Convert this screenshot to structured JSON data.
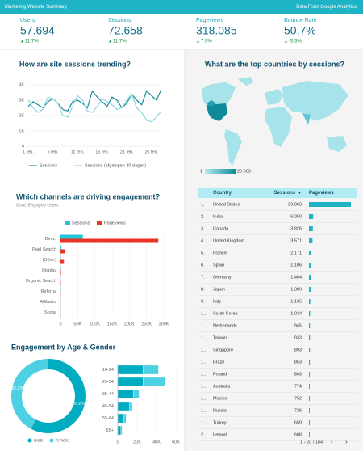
{
  "header": {
    "title": "Marketing Website Summary",
    "source": "Data From Google Analytics"
  },
  "kpis": [
    {
      "label": "Users",
      "value": "57.694",
      "delta": "11.7%"
    },
    {
      "label": "Sessions",
      "value": "72.658",
      "delta": "11.7%"
    },
    {
      "label": "Pageviews",
      "value": "318.085",
      "delta": "7.9%"
    },
    {
      "label": "Bounce Rate",
      "value": "50,7%",
      "delta": "-3.3%"
    }
  ],
  "map": {
    "title": "What are the top countries by sessions?",
    "legend_min": "1",
    "legend_max": "29.063"
  },
  "table": {
    "columns": [
      "Country",
      "Sessions",
      "Pageviews"
    ],
    "rows": [
      {
        "rank": "1.",
        "country": "United States",
        "sessions": "29.063",
        "pageviews": 130000
      },
      {
        "rank": "2.",
        "country": "India",
        "sessions": "6.050",
        "pageviews": 13000
      },
      {
        "rank": "3.",
        "country": "Canada",
        "sessions": "3.826",
        "pageviews": 12000
      },
      {
        "rank": "4.",
        "country": "United Kingdom",
        "sessions": "3.571",
        "pageviews": 11000
      },
      {
        "rank": "5.",
        "country": "France",
        "sessions": "2.171",
        "pageviews": 7000
      },
      {
        "rank": "6.",
        "country": "Spain",
        "sessions": "2.106",
        "pageviews": 7000
      },
      {
        "rank": "7.",
        "country": "Germany",
        "sessions": "1.464",
        "pageviews": 5000
      },
      {
        "rank": "8.",
        "country": "Japan",
        "sessions": "1.389",
        "pageviews": 5000
      },
      {
        "rank": "9.",
        "country": "Italy",
        "sessions": "1.135",
        "pageviews": 4000
      },
      {
        "rank": "1…",
        "country": "South Korea",
        "sessions": "1.024",
        "pageviews": 3500
      },
      {
        "rank": "1…",
        "country": "Netherlands",
        "sessions": "945",
        "pageviews": 3000
      },
      {
        "rank": "1…",
        "country": "Taiwan",
        "sessions": "933",
        "pageviews": 3000
      },
      {
        "rank": "1…",
        "country": "Singapore",
        "sessions": "893",
        "pageviews": 3000
      },
      {
        "rank": "1…",
        "country": "Brazil",
        "sessions": "853",
        "pageviews": 2800
      },
      {
        "rank": "1…",
        "country": "Poland",
        "sessions": "803",
        "pageviews": 2700
      },
      {
        "rank": "1…",
        "country": "Australia",
        "sessions": "774",
        "pageviews": 2500
      },
      {
        "rank": "1…",
        "country": "Mexico",
        "sessions": "752",
        "pageviews": 2500
      },
      {
        "rank": "1…",
        "country": "Russia",
        "sessions": "726",
        "pageviews": 2400
      },
      {
        "rank": "1…",
        "country": "Turkey",
        "sessions": "659",
        "pageviews": 2200
      },
      {
        "rank": "2…",
        "country": "Ireland",
        "sessions": "608",
        "pageviews": 2000
      }
    ],
    "pagination": "1 - 20 / 184"
  },
  "chart_data": [
    {
      "type": "line",
      "title": "How are site sessions trending?",
      "categories": [
        "1 feb.",
        null,
        null,
        null,
        null,
        "6 feb.",
        null,
        null,
        null,
        null,
        "11 feb.",
        null,
        null,
        null,
        null,
        "16 feb.",
        null,
        null,
        null,
        null,
        "21 feb.",
        null,
        null,
        null,
        null,
        "26 feb.",
        null,
        null
      ],
      "series": [
        {
          "name": "Sessions",
          "color": "#1b8a99",
          "values": [
            2600,
            2900,
            2700,
            2500,
            2900,
            3100,
            2800,
            2400,
            2300,
            2900,
            3000,
            2800,
            2500,
            3600,
            3200,
            2900,
            2600,
            3200,
            3000,
            2500,
            2800,
            3400,
            3000,
            2700,
            3600,
            3300,
            3000,
            3700
          ]
        },
        {
          "name": "Sessions (afgelopen 30 dagen)",
          "color": "#8fd8e2",
          "values": [
            3000,
            2500,
            2200,
            2400,
            3200,
            3100,
            2800,
            2000,
            1900,
            2600,
            3300,
            3000,
            2300,
            2200,
            2600,
            3100,
            2900,
            2700,
            2400,
            2500,
            3000,
            3400,
            2500,
            2200,
            1700,
            1600,
            1900,
            2300
          ]
        }
      ],
      "ylim": [
        0,
        4000
      ],
      "yticks": [
        0,
        {
          "value": 1000,
          "label": "1K"
        },
        {
          "value": 2000,
          "label": "2K"
        },
        {
          "value": 3000,
          "label": "3K"
        },
        {
          "value": 4000,
          "label": "4K"
        }
      ],
      "grid": true
    },
    {
      "type": "hbar",
      "title": "Which channels are driving engagement?",
      "subtitle": "Goal: Engaged Users",
      "categories": [
        "Direct",
        "Paid Search",
        "(Other)",
        "Display",
        "Organic Search",
        "Referral",
        "Affiliates",
        "Social"
      ],
      "series": [
        {
          "name": "Sessions",
          "color": "#26c6da",
          "values": [
            65000,
            2000,
            500,
            1000,
            300,
            200,
            100,
            100
          ]
        },
        {
          "name": "Pageviews",
          "color": "#ea3323",
          "values": [
            284000,
            12000,
            10000,
            1500,
            800,
            500,
            300,
            200
          ]
        }
      ],
      "xlim": [
        0,
        300000
      ],
      "xticks": [
        0,
        {
          "value": 50000,
          "label": "50K"
        },
        {
          "value": 100000,
          "label": "100K"
        },
        {
          "value": 150000,
          "label": "150K"
        },
        {
          "value": 200000,
          "label": "200K"
        },
        {
          "value": 250000,
          "label": "250K"
        },
        {
          "value": 300000,
          "label": "300K"
        }
      ],
      "grid": true
    },
    {
      "type": "pie",
      "title": "Engagement by Age & Gender",
      "donut": true,
      "categories": [
        "male",
        "female"
      ],
      "values": [
        57.8,
        42.2
      ],
      "value_labels": [
        "57.8%",
        "42.2%"
      ],
      "colors": [
        "#00acc1",
        "#4dd0e1"
      ]
    },
    {
      "type": "stacked_hbar",
      "categories": [
        "18-24",
        "25-34",
        "35-44",
        "45-54",
        "55-64",
        "65+"
      ],
      "series": [
        {
          "name": "male",
          "color": "#00acc1",
          "values": [
            26000,
            26000,
            16000,
            12000,
            6000,
            3000
          ]
        },
        {
          "name": "female",
          "color": "#4dd0e1",
          "values": [
            16000,
            23000,
            6000,
            3000,
            2500,
            1500
          ]
        }
      ],
      "xlim": [
        0,
        60000
      ],
      "xticks": [
        0,
        {
          "value": 20000,
          "label": "20K"
        },
        {
          "value": 40000,
          "label": "40K"
        },
        {
          "value": 60000,
          "label": "60K"
        }
      ],
      "grid": true
    }
  ]
}
